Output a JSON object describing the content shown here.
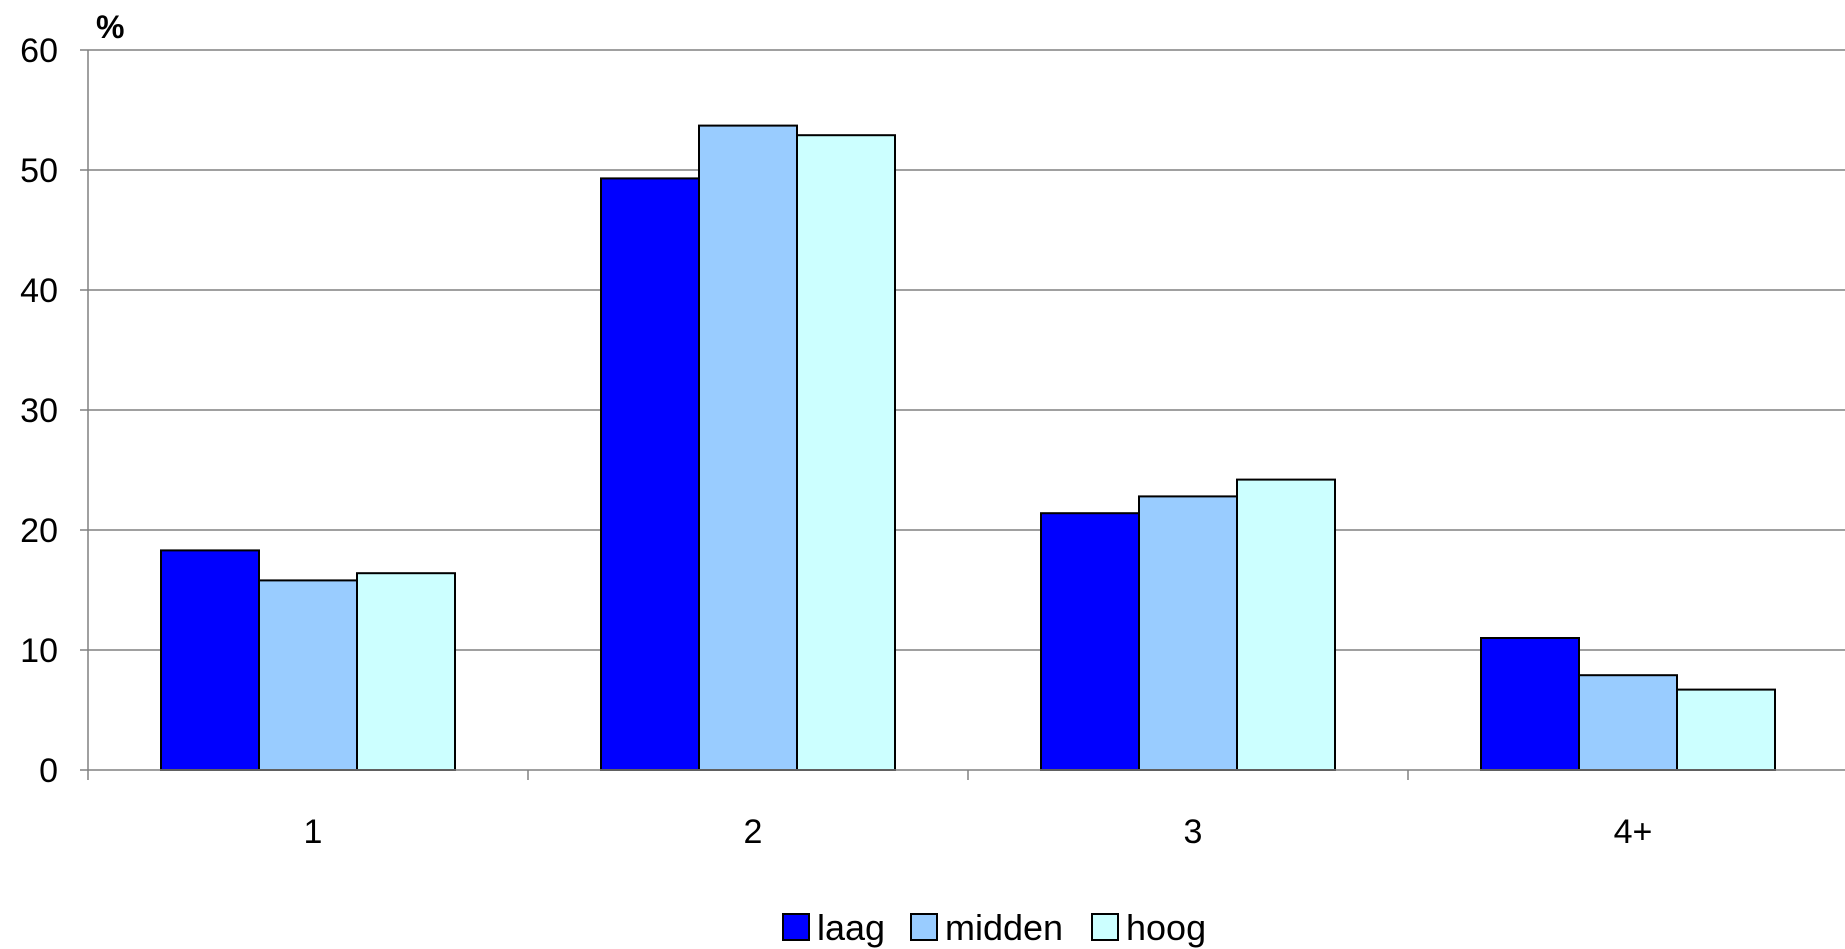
{
  "chart_data": {
    "type": "bar",
    "ylabel": "%",
    "ylim": [
      0,
      60
    ],
    "yticks": [
      0,
      10,
      20,
      30,
      40,
      50,
      60
    ],
    "grid": true,
    "legend_position": "bottom",
    "categories": [
      "1",
      "2",
      "3",
      "4+"
    ],
    "series": [
      {
        "name": "laag",
        "color": "#0000ff",
        "values": [
          18.3,
          49.3,
          21.4,
          11.0
        ]
      },
      {
        "name": "midden",
        "color": "#99ccff",
        "values": [
          15.8,
          53.7,
          22.8,
          7.9
        ]
      },
      {
        "name": "hoog",
        "color": "#ccffff",
        "values": [
          16.4,
          52.9,
          24.2,
          6.7
        ]
      }
    ]
  }
}
